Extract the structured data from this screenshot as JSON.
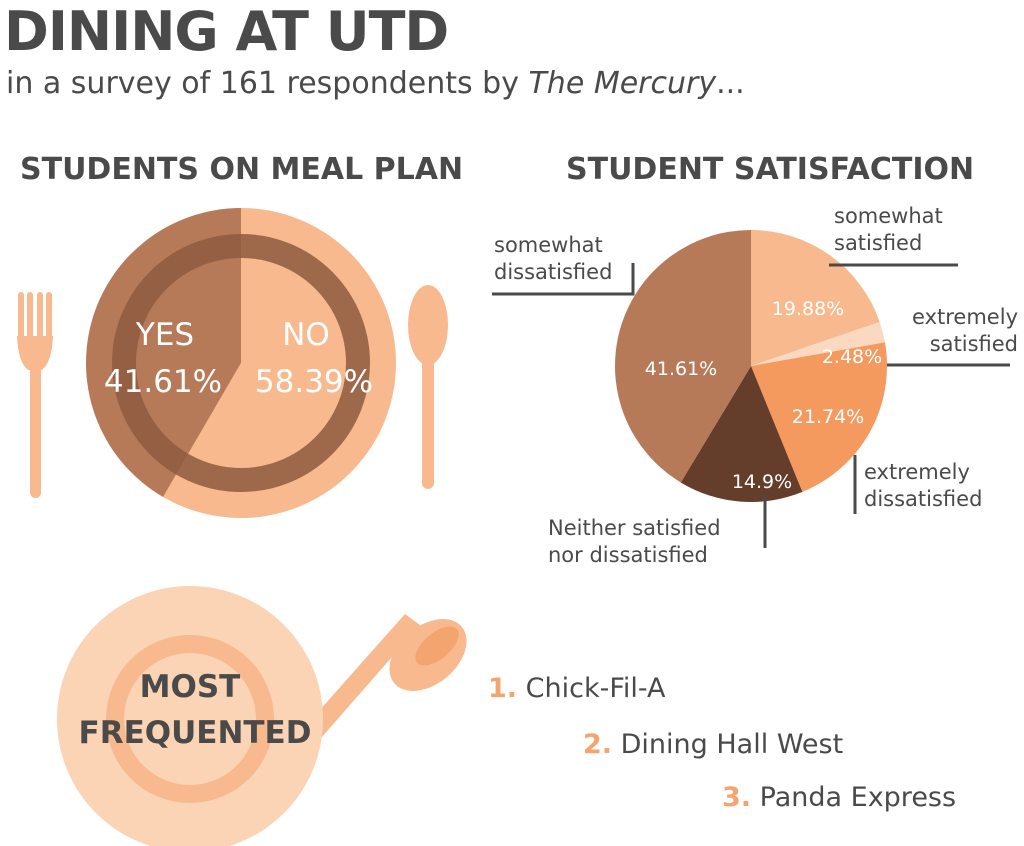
{
  "title": "DINING AT UTD",
  "subtitle": {
    "prefix": "in a survey of 161 respondents by ",
    "publication": "The Mercury",
    "suffix": "..."
  },
  "colors": {
    "text": "#4a4a4a",
    "peach": "#f7b98d",
    "light_peach": "#fbd3b5",
    "brown": "#b77a59",
    "dark_brown": "#653d2b",
    "orange": "#f4a46e",
    "pale": "#fbd8c0"
  },
  "chart_data": [
    {
      "type": "pie",
      "title": "STUDENTS ON MEAL PLAN",
      "slices": [
        {
          "label": "YES",
          "value": 41.61,
          "display": "41.61%",
          "color": "#b77a59"
        },
        {
          "label": "NO",
          "value": 58.39,
          "display": "58.39%",
          "color": "#f7b98d"
        }
      ]
    },
    {
      "type": "pie",
      "title": "STUDENT SATISFACTION",
      "slices": [
        {
          "label": "somewhat satisfied",
          "value": 19.88,
          "display": "19.88%",
          "color": "#f7b98d"
        },
        {
          "label": "extremely satisfied",
          "value": 2.48,
          "display": "2.48%",
          "color": "#fbd8c0"
        },
        {
          "label": "extremely dissatisfied",
          "value": 21.74,
          "display": "21.74%",
          "color": "#f49a5f"
        },
        {
          "label": "Neither satisfied nor dissatisfied",
          "value": 14.9,
          "display": "14.9%",
          "color": "#653d2b"
        },
        {
          "label": "somewhat dissatisfied",
          "value": 41.61,
          "display": "41.61%",
          "color": "#b77a59"
        }
      ]
    }
  ],
  "callouts": {
    "somewhat_dissatisfied": [
      "somewhat",
      "dissatisfied"
    ],
    "somewhat_satisfied": [
      "somewhat",
      "satisfied"
    ],
    "extremely_satisfied": [
      "extremely",
      "satisfied"
    ],
    "extremely_dissatisfied": [
      "extremely",
      "dissatisfied"
    ],
    "neither": [
      "Neither satisfied",
      "nor dissatisfied"
    ]
  },
  "most_frequented": {
    "label_line1": "MOST",
    "label_line2": "FREQUENTED",
    "items": [
      {
        "number": "1.",
        "name": "Chick-Fil-A"
      },
      {
        "number": "2.",
        "name": "Dining Hall West"
      },
      {
        "number": "3.",
        "name": "Panda Express"
      }
    ]
  }
}
